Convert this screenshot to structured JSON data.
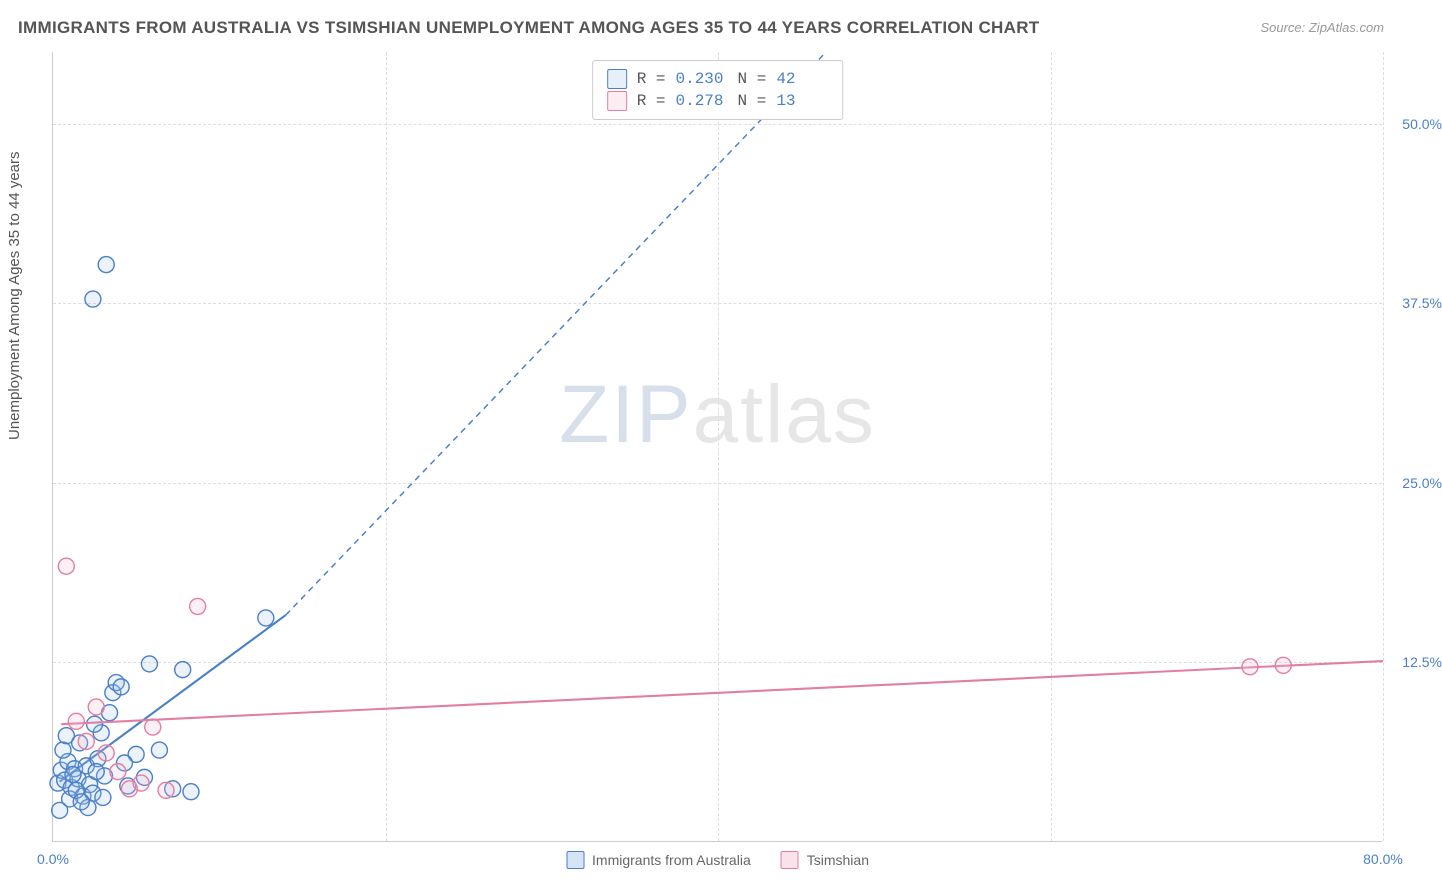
{
  "title": "IMMIGRANTS FROM AUSTRALIA VS TSIMSHIAN UNEMPLOYMENT AMONG AGES 35 TO 44 YEARS CORRELATION CHART",
  "source": "Source: ZipAtlas.com",
  "y_axis_label": "Unemployment Among Ages 35 to 44 years",
  "watermark_zip": "ZIP",
  "watermark_atlas": "atlas",
  "chart": {
    "type": "scatter",
    "xlim": [
      0,
      80
    ],
    "ylim": [
      0,
      55
    ],
    "xticks": [
      0,
      20,
      40,
      60,
      80
    ],
    "xtick_labels": [
      "0.0%",
      "",
      "",
      "",
      "80.0%"
    ],
    "yticks": [
      12.5,
      25.0,
      37.5,
      50.0
    ],
    "ytick_labels": [
      "12.5%",
      "25.0%",
      "37.5%",
      "50.0%"
    ],
    "background_color": "#ffffff",
    "grid_color": "#dddddd",
    "axis_color": "#cccccc",
    "tick_label_color": "#4a7fc9",
    "marker_radius": 8,
    "marker_fill_opacity": 0.22,
    "marker_stroke_width": 1.4,
    "trend_stroke_width": 2.1,
    "trend_dash": "6,5"
  },
  "series": [
    {
      "name": "Immigrants from Australia",
      "color_stroke": "#4a7fc9",
      "color_fill": "#a6c4e8",
      "R": "0.230",
      "N": "42",
      "trend": {
        "x1": 0.4,
        "y1": 4.2,
        "x2": 14.0,
        "y2": 15.8,
        "ext_x2": 46.5,
        "ext_y2": 55.0
      },
      "points": [
        [
          0.3,
          4.1
        ],
        [
          0.5,
          5.0
        ],
        [
          0.7,
          4.3
        ],
        [
          0.9,
          5.6
        ],
        [
          1.1,
          3.8
        ],
        [
          1.3,
          5.1
        ],
        [
          1.5,
          4.4
        ],
        [
          1.6,
          6.9
        ],
        [
          1.8,
          3.2
        ],
        [
          2.0,
          5.3
        ],
        [
          2.2,
          4.0
        ],
        [
          2.4,
          3.4
        ],
        [
          2.7,
          5.8
        ],
        [
          2.9,
          7.6
        ],
        [
          3.1,
          4.6
        ],
        [
          3.4,
          9.0
        ],
        [
          3.6,
          10.4
        ],
        [
          3.8,
          11.1
        ],
        [
          4.1,
          10.8
        ],
        [
          4.5,
          3.9
        ],
        [
          5.0,
          6.1
        ],
        [
          5.5,
          4.5
        ],
        [
          6.4,
          6.4
        ],
        [
          7.2,
          3.7
        ],
        [
          7.8,
          12.0
        ],
        [
          8.3,
          3.5
        ],
        [
          3.2,
          40.2
        ],
        [
          2.4,
          37.8
        ],
        [
          12.8,
          15.6
        ],
        [
          5.8,
          12.4
        ],
        [
          1.0,
          3.0
        ],
        [
          1.4,
          3.6
        ],
        [
          0.6,
          6.4
        ],
        [
          0.8,
          7.4
        ],
        [
          2.5,
          8.2
        ],
        [
          4.3,
          5.5
        ],
        [
          2.1,
          2.4
        ],
        [
          1.7,
          2.8
        ],
        [
          3.0,
          3.1
        ],
        [
          2.6,
          4.9
        ],
        [
          0.4,
          2.2
        ],
        [
          1.2,
          4.7
        ]
      ]
    },
    {
      "name": "Tsimshian",
      "color_stroke": "#e37ea3",
      "color_fill": "#f3bcd0",
      "R": "0.278",
      "N": "13",
      "trend": {
        "x1": 0.5,
        "y1": 8.2,
        "x2": 80.0,
        "y2": 12.6,
        "ext_x2": 80.0,
        "ext_y2": 12.6
      },
      "points": [
        [
          0.8,
          19.2
        ],
        [
          1.4,
          8.4
        ],
        [
          2.0,
          7.0
        ],
        [
          2.6,
          9.4
        ],
        [
          3.2,
          6.2
        ],
        [
          3.9,
          4.9
        ],
        [
          4.6,
          3.7
        ],
        [
          5.3,
          4.1
        ],
        [
          6.0,
          8.0
        ],
        [
          6.8,
          3.6
        ],
        [
          8.7,
          16.4
        ],
        [
          72.0,
          12.2
        ],
        [
          74.0,
          12.3
        ]
      ]
    }
  ],
  "bottom_legend": [
    {
      "label": "Immigrants from Australia",
      "stroke": "#4a7fc9",
      "fill": "rgba(166,196,232,0.45)"
    },
    {
      "label": "Tsimshian",
      "stroke": "#e37ea3",
      "fill": "rgba(243,188,208,0.45)"
    }
  ]
}
